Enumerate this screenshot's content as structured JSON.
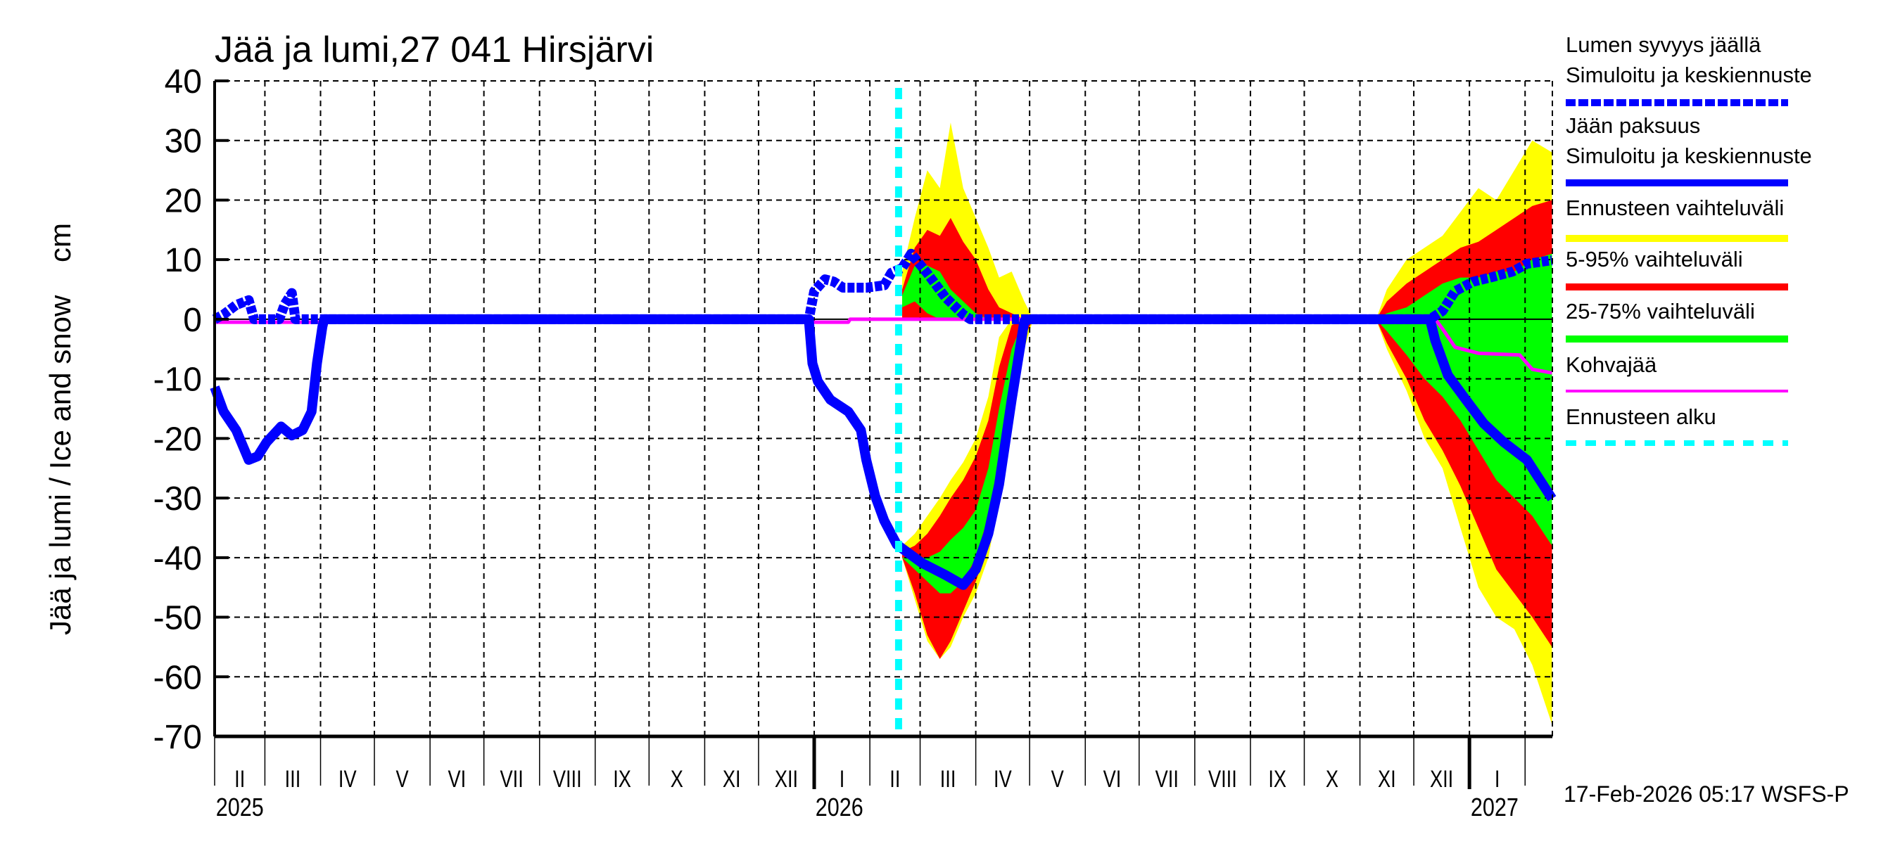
{
  "chart_data": {
    "type": "area",
    "title": "Jää ja lumi,27 041 Hirsjärvi",
    "ylabel": "Jää ja lumi / Ice and snow    cm",
    "xlabel": "",
    "ylim": [
      -70,
      40
    ],
    "yticks": [
      40,
      30,
      20,
      10,
      0,
      -10,
      -20,
      -30,
      -40,
      -50,
      -60,
      -70
    ],
    "x_unit": "days since 2025-02-01",
    "x_start": "2025-02-01",
    "xlim": [
      0,
      745
    ],
    "grid": true,
    "month_labels": [
      "II",
      "III",
      "IV",
      "V",
      "VI",
      "VII",
      "VIII",
      "IX",
      "X",
      "XI",
      "XII",
      "I",
      "II",
      "III",
      "IV",
      "V",
      "VI",
      "VII",
      "VIII",
      "IX",
      "X",
      "XI",
      "XII",
      "I"
    ],
    "year_labels": [
      {
        "label": "2025",
        "day": 0
      },
      {
        "label": "2026",
        "day": 334
      },
      {
        "label": "2027",
        "day": 699
      }
    ],
    "forecast_start_day": 381,
    "legend_position": "right",
    "legend": [
      {
        "label1": "Lumen syvyys jäällä",
        "label2": "Simuloitu ja keskiennuste",
        "color": "#0000ff",
        "style": "dashed"
      },
      {
        "label1": "Jään paksuus",
        "label2": "Simuloitu ja keskiennuste",
        "color": "#0000ff",
        "style": "solid"
      },
      {
        "label1": "Ennusteen vaihteluväli",
        "color": "#ffff00",
        "style": "band"
      },
      {
        "label1": "5-95% vaihteluväli",
        "color": "#ff0000",
        "style": "band"
      },
      {
        "label1": "25-75% vaihteluväli",
        "color": "#00ff00",
        "style": "band"
      },
      {
        "label1": "Kohvajää",
        "color": "#ff00ff",
        "style": "thin"
      },
      {
        "label1": "Ennusteen alku",
        "color": "#00ffff",
        "style": "dotted"
      }
    ],
    "bands": [
      {
        "name": "spring-ice",
        "x": [
          383,
          390,
          397,
          404,
          410,
          417,
          424,
          431,
          437,
          444,
          451,
          456
        ],
        "yellow": {
          "upper": [
            -38,
            -36,
            -33,
            -30,
            -27,
            -24,
            -20,
            -13,
            -3,
            0,
            0,
            0
          ],
          "lower": [
            -40,
            -47,
            -54,
            -57,
            -55,
            -50,
            -46,
            -40,
            -30,
            -18,
            -5,
            0
          ]
        },
        "red": {
          "upper": [
            -39,
            -38,
            -36,
            -33,
            -30,
            -27,
            -23,
            -17,
            -8,
            -1,
            0,
            0
          ],
          "lower": [
            -40,
            -46,
            -53,
            -57,
            -54,
            -49,
            -44,
            -38,
            -28,
            -15,
            -3,
            0
          ]
        },
        "green": {
          "upper": [
            -40,
            -40,
            -40,
            -39,
            -37,
            -35,
            -32,
            -25,
            -15,
            -5,
            0,
            0
          ],
          "lower": [
            -40,
            -42,
            -44,
            -46,
            -46,
            -44,
            -40,
            -33,
            -23,
            -10,
            -1,
            0
          ]
        }
      },
      {
        "name": "spring-snow",
        "x": [
          383,
          390,
          397,
          404,
          410,
          417,
          424,
          431,
          437,
          444,
          451,
          456
        ],
        "yellow": {
          "upper": [
            8,
            17,
            25,
            22,
            33,
            22,
            17,
            12,
            7,
            8,
            3,
            0
          ],
          "lower": [
            0,
            0,
            0,
            0,
            0,
            0,
            0,
            0,
            0,
            0,
            0,
            0
          ]
        },
        "red": {
          "upper": [
            5,
            12,
            15,
            14,
            17,
            13,
            10,
            5,
            2,
            1,
            0,
            0
          ],
          "lower": [
            0,
            0,
            0,
            0,
            0,
            0,
            0,
            0,
            0,
            0,
            0,
            0
          ]
        },
        "green": {
          "upper": [
            4,
            9,
            9,
            8,
            5,
            3,
            1,
            0,
            0,
            0,
            0,
            0
          ],
          "lower": [
            2,
            3,
            1,
            0,
            0,
            0,
            0,
            0,
            0,
            0,
            0,
            0
          ]
        }
      },
      {
        "name": "winter-snow",
        "x": [
          647,
          653,
          664,
          674,
          684,
          694,
          704,
          714,
          724,
          734,
          745
        ],
        "yellow": {
          "upper": [
            0,
            5,
            10,
            12,
            14,
            18,
            22,
            20,
            25,
            30,
            28
          ],
          "lower": [
            0,
            0,
            0,
            0,
            0,
            0,
            0,
            0,
            0,
            0,
            0
          ]
        },
        "red": {
          "upper": [
            0,
            3,
            6,
            8,
            10,
            12,
            13,
            15,
            17,
            19,
            20
          ],
          "lower": [
            0,
            0,
            0,
            0,
            0,
            0,
            0,
            0,
            0,
            0,
            0
          ]
        },
        "green": {
          "upper": [
            0,
            1,
            2,
            4,
            6,
            7,
            7,
            8,
            8,
            10,
            11
          ],
          "lower": [
            0,
            0,
            0,
            0,
            0,
            0,
            0,
            0,
            0,
            0,
            0
          ]
        }
      },
      {
        "name": "winter-ice",
        "x": [
          647,
          653,
          664,
          674,
          684,
          694,
          704,
          714,
          724,
          734,
          745
        ],
        "yellow": {
          "upper": [
            0,
            0,
            0,
            0,
            0,
            0,
            0,
            0,
            0,
            0,
            0
          ],
          "lower": [
            0,
            -5,
            -12,
            -20,
            -25,
            -35,
            -45,
            -50,
            -52,
            -58,
            -68
          ]
        },
        "red": {
          "upper": [
            0,
            0,
            0,
            0,
            0,
            0,
            0,
            0,
            0,
            0,
            0
          ],
          "lower": [
            0,
            -4,
            -10,
            -17,
            -22,
            -28,
            -35,
            -42,
            -46,
            -50,
            -55
          ]
        },
        "green": {
          "upper": [
            0,
            0,
            0,
            0,
            0,
            0,
            0,
            0,
            0,
            0,
            0
          ],
          "lower": [
            0,
            -2,
            -6,
            -10,
            -13,
            -17,
            -22,
            -27,
            -30,
            -33,
            -38
          ]
        }
      }
    ],
    "series": [
      {
        "name": "Jään paksuus",
        "color": "#0000ff",
        "x": [
          0,
          5,
          12,
          19,
          24,
          29,
          37,
          43,
          49,
          54,
          57,
          60,
          61,
          331,
          333,
          336,
          343,
          353,
          360,
          363,
          368,
          373,
          380,
          394,
          407,
          417,
          424,
          431,
          437,
          444,
          451,
          454,
          677,
          680,
          687,
          697,
          707,
          718,
          731,
          745
        ],
        "y": [
          -11.4,
          -15.5,
          -18.6,
          -23.6,
          -23,
          -20.6,
          -18,
          -19.5,
          -18.6,
          -15.5,
          -7.4,
          -1.3,
          0,
          0,
          -7.4,
          -10.4,
          -13.5,
          -15.5,
          -18.6,
          -23.6,
          -29.7,
          -33.8,
          -37.8,
          -40.9,
          -42.9,
          -44.6,
          -42,
          -36,
          -27.7,
          -13.5,
          -0.4,
          0,
          0,
          -3.6,
          -9.4,
          -13.5,
          -17.5,
          -20.6,
          -23.6,
          -30.1
        ]
      },
      {
        "name": "Lumen syvyys jäällä",
        "color": "#0000ff",
        "x": [
          0,
          5,
          12,
          19,
          22,
          36,
          39,
          43,
          45,
          331,
          334,
          340,
          345,
          350,
          363,
          373,
          377,
          383,
          388,
          397,
          407,
          417,
          421,
          677,
          684,
          691,
          701,
          712,
          723,
          731,
          745
        ],
        "y": [
          0,
          0.8,
          2.4,
          3.2,
          0,
          0,
          2.5,
          4.4,
          0,
          0,
          4.7,
          6.7,
          6.3,
          5.3,
          5.3,
          5.7,
          7.8,
          8.6,
          11,
          7.7,
          3.7,
          0.8,
          0,
          0,
          1.4,
          4.7,
          6.3,
          7.1,
          8,
          9.3,
          9.9
        ]
      },
      {
        "name": "Kohvajää",
        "color": "#ff00ff",
        "x": [
          0,
          353,
          354,
          680,
          684,
          691,
          704,
          727,
          734,
          745
        ],
        "y": [
          -0.5,
          -0.5,
          0,
          0,
          -1.6,
          -4.7,
          -5.7,
          -6,
          -8.4,
          -9
        ]
      }
    ]
  },
  "footer": "17-Feb-2026 05:17 WSFS-P"
}
